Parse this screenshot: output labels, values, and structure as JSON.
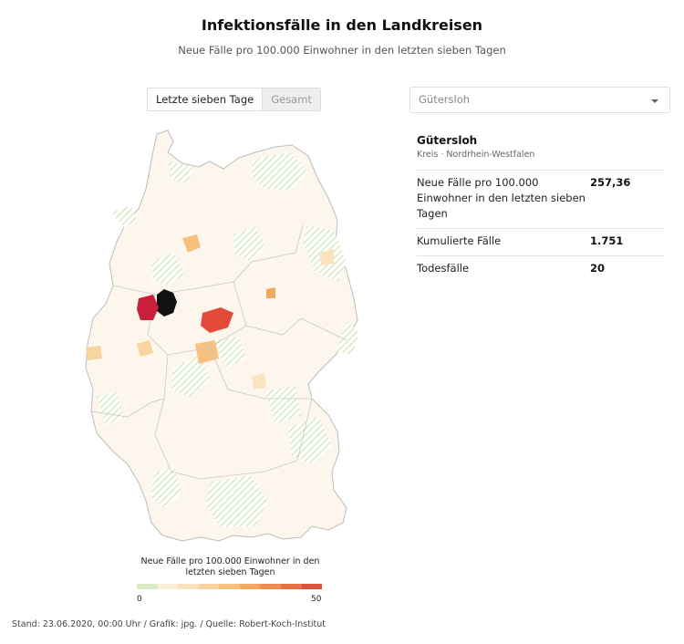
{
  "header": {
    "title": "Infektionsfälle in den Landkreisen",
    "subtitle": "Neue Fälle pro 100.000 Einwohner in den letzten sieben Tagen"
  },
  "toggle": {
    "option_week": "Letzte sieben Tage",
    "option_total": "Gesamt",
    "selected": "Letzte sieben Tage"
  },
  "search": {
    "value": "Gütersloh"
  },
  "detail": {
    "name": "Gütersloh",
    "type_state": "Kreis · Nordrhein-Westfalen",
    "rows": [
      {
        "label": "Neue Fälle pro 100.000 Einwohner in den letzten sieben Tagen",
        "value": "257,36"
      },
      {
        "label": "Kumulierte Fälle",
        "value": "1.751"
      },
      {
        "label": "Todesfälle",
        "value": "20"
      }
    ]
  },
  "legend": {
    "title": "Neue Fälle pro 100.000 Einwohner in den letzten sieben Tagen",
    "min": "0",
    "max": "50",
    "colors": [
      "#d7ecc4",
      "#fcefd9",
      "#fbe3c0",
      "#f9d3a0",
      "#f6c17f",
      "#f1a862",
      "#ec8e50",
      "#e57145",
      "#dc523d"
    ]
  },
  "map_colors": {
    "selected": "#111111",
    "high": "#c8203a",
    "elevated": "#e34a3a",
    "no_cases_hatch": "#c9e2ad",
    "border": "#c8c8c8"
  },
  "footer": {
    "text": "Stand: 23.06.2020, 00:00 Uhr / Grafik: jpg. / Quelle: Robert-Koch-Institut"
  }
}
